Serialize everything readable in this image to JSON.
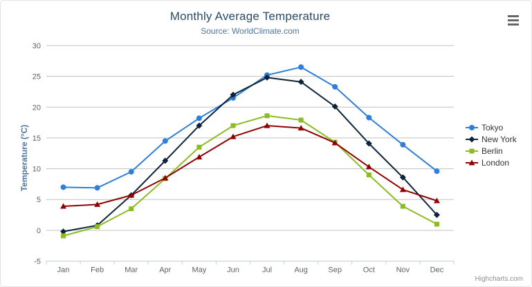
{
  "credits": {
    "label": "Highcharts.com"
  },
  "context_menu": {
    "icon": "hamburger-icon"
  },
  "chart_data": {
    "type": "line",
    "title": "Monthly Average Temperature",
    "subtitle": "Source: WorldClimate.com",
    "xlabel": "",
    "ylabel": "Temperature (°C)",
    "ylim": [
      -5,
      30
    ],
    "yticks": [
      -5,
      0,
      5,
      10,
      15,
      20,
      25,
      30
    ],
    "grid": true,
    "legend_position": "right",
    "categories": [
      "Jan",
      "Feb",
      "Mar",
      "Apr",
      "May",
      "Jun",
      "Jul",
      "Aug",
      "Sep",
      "Oct",
      "Nov",
      "Dec"
    ],
    "series": [
      {
        "name": "Tokyo",
        "color": "#2f7ed8",
        "marker": "circle",
        "values": [
          7.0,
          6.9,
          9.5,
          14.5,
          18.2,
          21.5,
          25.2,
          26.5,
          23.3,
          18.3,
          13.9,
          9.6
        ]
      },
      {
        "name": "New York",
        "color": "#0d233a",
        "marker": "diamond",
        "values": [
          -0.2,
          0.8,
          5.7,
          11.3,
          17.0,
          22.0,
          24.8,
          24.1,
          20.1,
          14.1,
          8.6,
          2.5
        ]
      },
      {
        "name": "Berlin",
        "color": "#8bbc21",
        "marker": "square",
        "values": [
          -0.9,
          0.6,
          3.5,
          8.4,
          13.5,
          17.0,
          18.6,
          17.9,
          14.3,
          9.0,
          3.9,
          1.0
        ]
      },
      {
        "name": "London",
        "color": "#910000",
        "marker": "triangle",
        "values": [
          3.9,
          4.2,
          5.7,
          8.5,
          11.9,
          15.2,
          17.0,
          16.6,
          14.2,
          10.3,
          6.6,
          4.8
        ]
      }
    ],
    "colors": {
      "gridline": "#c0c0c0",
      "axis_line": "#c0d0e0",
      "tick": "#c0d0e0",
      "axis_label": "#606060"
    }
  }
}
